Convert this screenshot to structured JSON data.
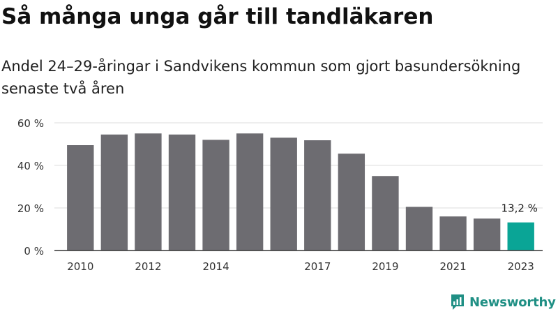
{
  "chart_data": {
    "type": "bar",
    "title": "Så många unga går till tandläkaren",
    "subtitle": "Andel 24–29-åringar i Sandvikens kommun som gjort basundersökning senaste två åren",
    "categories": [
      "2010",
      "2011",
      "2012",
      "2013",
      "2014",
      "2015",
      "2016",
      "2017",
      "2018",
      "2019",
      "2020",
      "2021",
      "2022",
      "2023"
    ],
    "values": [
      49.5,
      54.5,
      55.0,
      54.5,
      52.0,
      55.0,
      53.0,
      51.8,
      45.5,
      35.0,
      20.5,
      16.0,
      15.0,
      13.2
    ],
    "x_tick_labels": [
      "2010",
      "",
      "2012",
      "",
      "2014",
      "",
      "",
      "2017",
      "",
      "2019",
      "",
      "2021",
      "",
      "2023"
    ],
    "y_ticks": [
      0,
      20,
      40,
      60
    ],
    "y_tick_labels": [
      "0 %",
      "20 %",
      "40 %",
      "60 %"
    ],
    "ylim": [
      0,
      60
    ],
    "xlabel": "",
    "ylabel": "",
    "grid": true,
    "highlight_index": 13,
    "highlight_label": "13,2 %",
    "colors": {
      "bar": "#6d6c71",
      "highlight": "#0aa596",
      "grid": "#dcdcdc",
      "axis": "#333333"
    }
  },
  "brand": {
    "name": "Newsworthy",
    "icon": "newsworthy-logo-icon",
    "color": "#1f8f84"
  }
}
